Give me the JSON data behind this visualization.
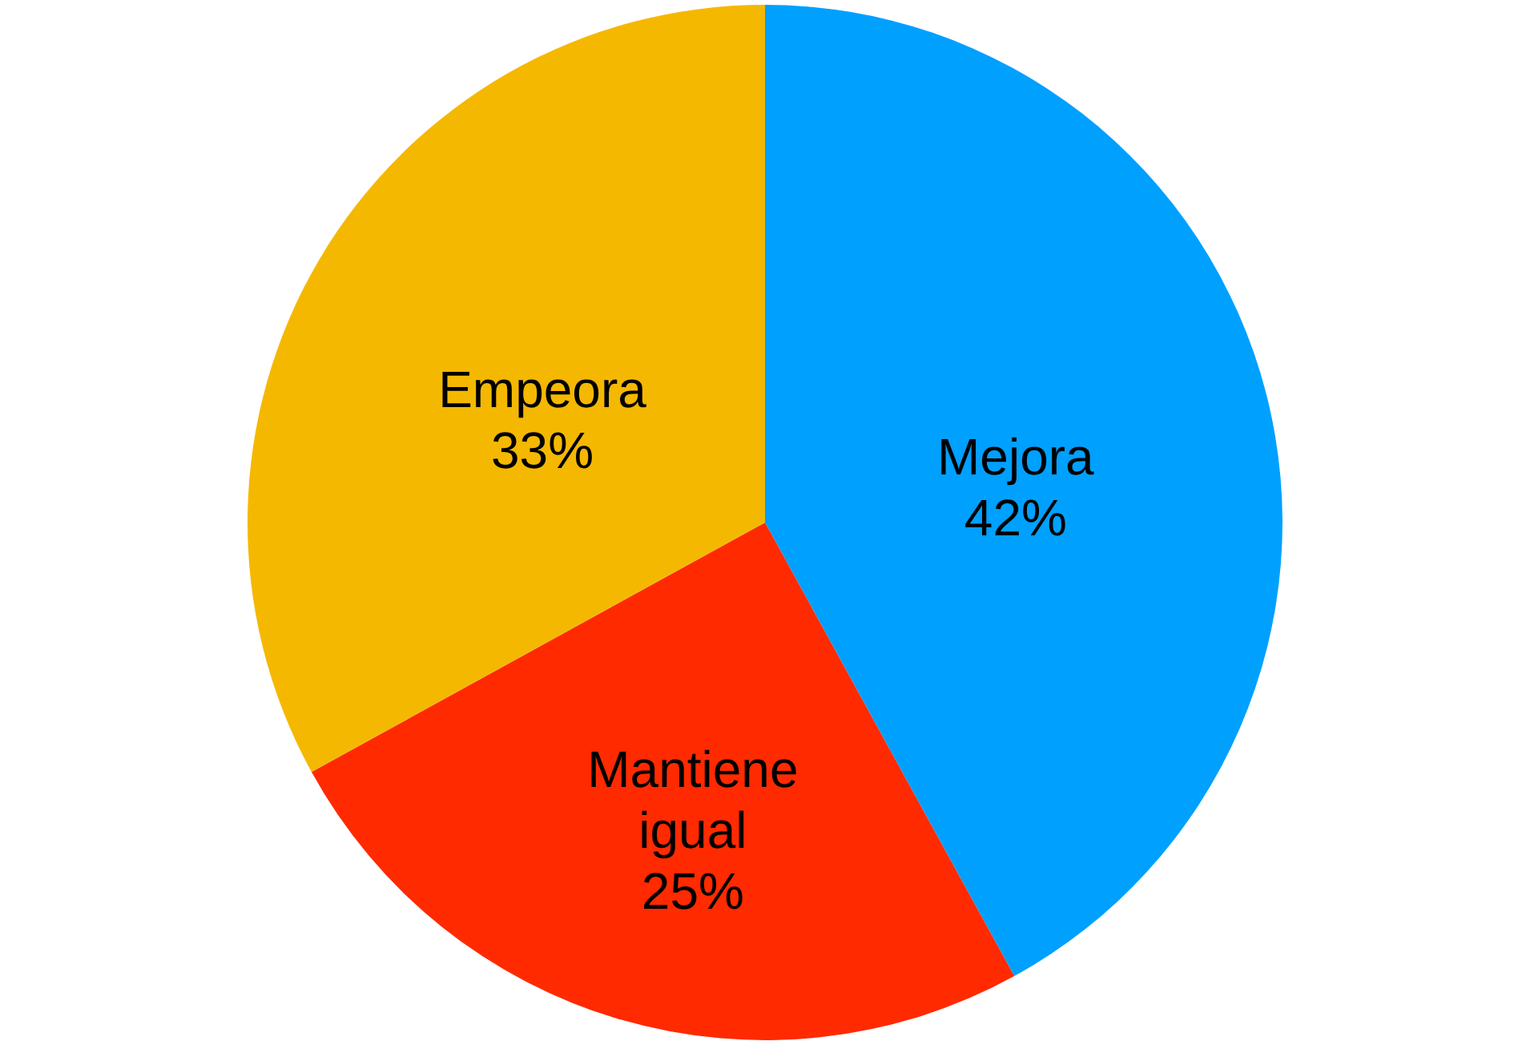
{
  "chart_data": {
    "type": "pie",
    "categories": [
      "Mejora",
      "Mantiene igual",
      "Empeora"
    ],
    "values": [
      42,
      25,
      33
    ],
    "value_labels": [
      "42%",
      "25%",
      "33%"
    ],
    "colors": [
      "#00a0ff",
      "#ff2a00",
      "#f5b800"
    ]
  }
}
